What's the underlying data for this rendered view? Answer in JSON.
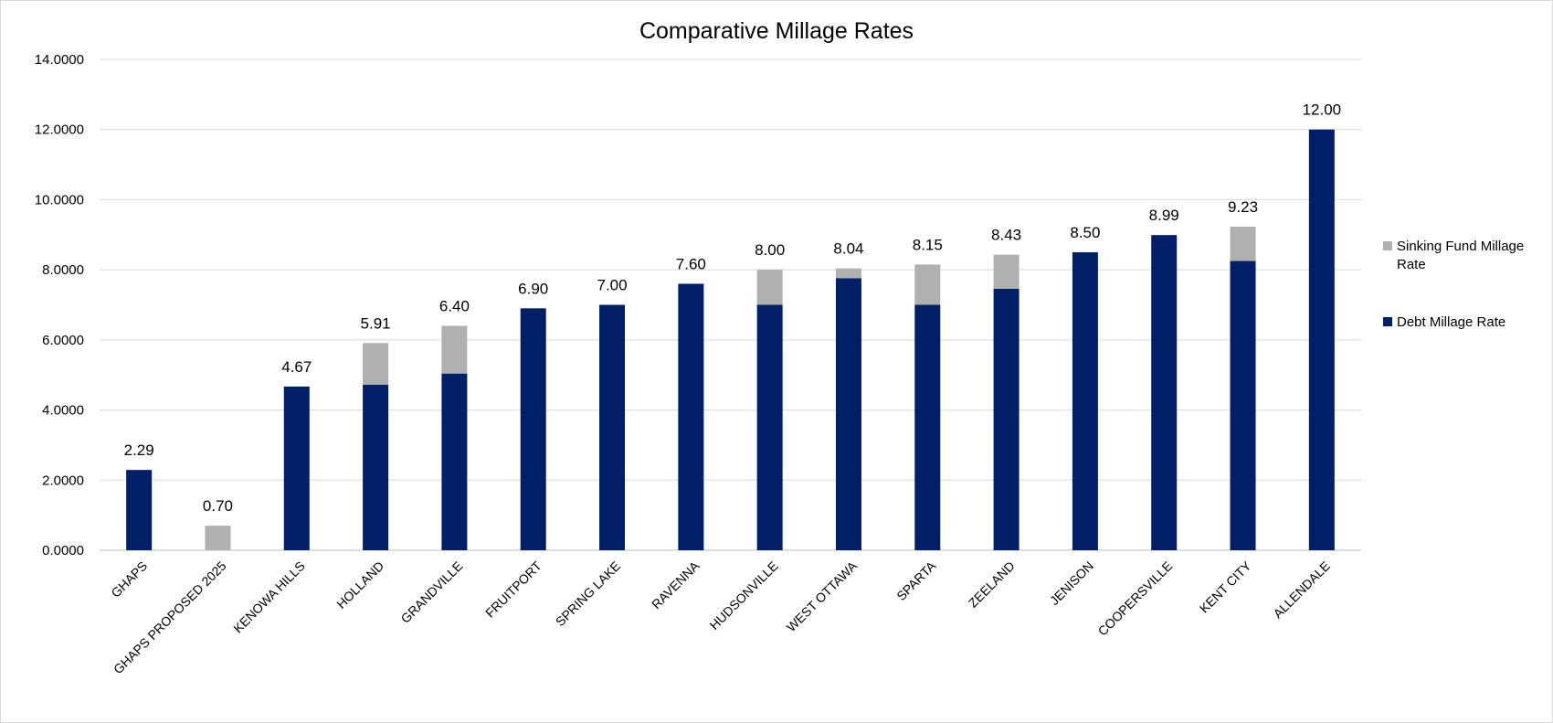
{
  "chart_data": {
    "type": "bar",
    "stacked": true,
    "title": "Comparative  Millage Rates",
    "ylim": [
      0,
      14
    ],
    "yticks": [
      "0.0000",
      "2.0000",
      "4.0000",
      "6.0000",
      "8.0000",
      "10.0000",
      "12.0000",
      "14.0000"
    ],
    "grid": true,
    "legend_position": "right",
    "categories": [
      "GHAPS",
      "GHAPS PROPOSED 2025",
      "KENOWA HILLS",
      "HOLLAND",
      "GRANDVILLE",
      "FRUITPORT",
      "SPRING LAKE",
      "RAVENNA",
      "HUDSONVILLE",
      "WEST OTTAWA",
      "SPARTA",
      "ZEELAND",
      "JENISON",
      "COOPERSVILLE",
      "KENT CITY",
      "ALLENDALE"
    ],
    "series": [
      {
        "name": "Debt Millage Rate",
        "color": "#001f66",
        "values": [
          2.29,
          0,
          4.67,
          4.72,
          5.04,
          6.9,
          7.0,
          7.6,
          7.0,
          7.76,
          7.0,
          7.46,
          8.5,
          8.99,
          8.25,
          12.0
        ]
      },
      {
        "name": "Sinking Fund Millage Rate",
        "color": "#b0b0b0",
        "values": [
          0,
          0.7,
          0,
          1.19,
          1.36,
          0,
          0,
          0,
          1.0,
          0.28,
          1.15,
          0.97,
          0,
          0,
          0.98,
          0
        ]
      }
    ],
    "totals_labels": [
      "2.29",
      "0.70",
      "4.67",
      "5.91",
      "6.40",
      "6.90",
      "7.00",
      "7.60",
      "8.00",
      "8.04",
      "8.15",
      "8.43",
      "8.50",
      "8.99",
      "9.23",
      "12.00"
    ],
    "legend": [
      {
        "label_line1": "Sinking Fund Millage",
        "label_line2": "Rate",
        "color": "#b0b0b0"
      },
      {
        "label_line1": "Debt Millage Rate",
        "label_line2": "",
        "color": "#001f66"
      }
    ]
  }
}
